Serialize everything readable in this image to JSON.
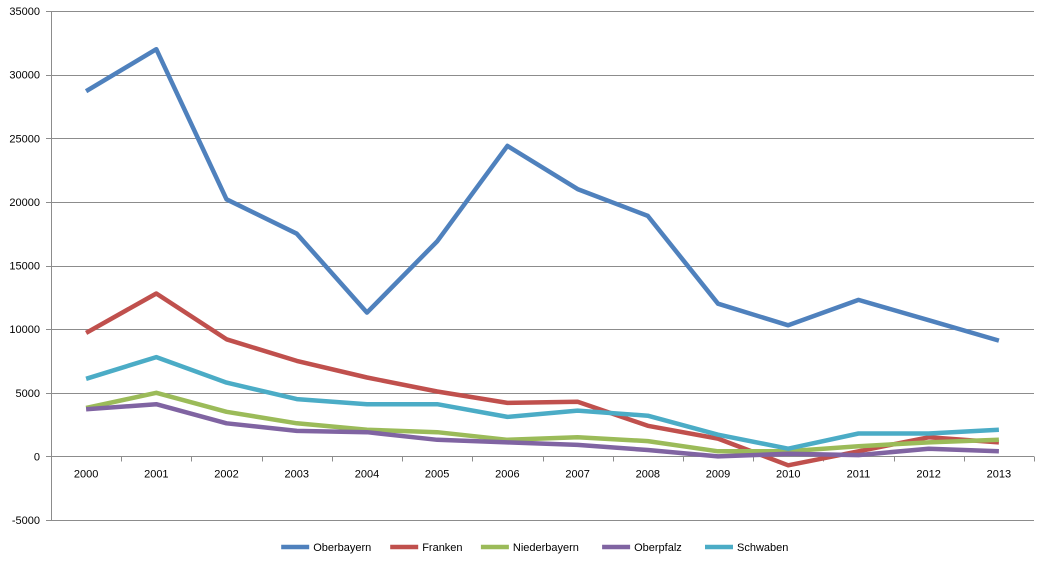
{
  "chart_data": {
    "type": "line",
    "title": "",
    "xlabel": "",
    "ylabel": "",
    "categories": [
      "2000",
      "2001",
      "2002",
      "2003",
      "2004",
      "2005",
      "2006",
      "2007",
      "2008",
      "2009",
      "2010",
      "2011",
      "2012",
      "2013"
    ],
    "ylim": [
      -5000,
      35000
    ],
    "yticks": [
      -5000,
      0,
      5000,
      10000,
      15000,
      20000,
      25000,
      30000,
      35000
    ],
    "grid": true,
    "legend_position": "bottom",
    "series": [
      {
        "name": "Oberbayern",
        "color": "#4f81bd",
        "values": [
          28700,
          32000,
          20200,
          17500,
          11300,
          16900,
          24400,
          21000,
          18900,
          12000,
          10300,
          12300,
          10700,
          9100
        ]
      },
      {
        "name": "Franken",
        "color": "#c0504d",
        "values": [
          9700,
          12800,
          9200,
          7500,
          6200,
          5100,
          4200,
          4300,
          2400,
          1400,
          -700,
          400,
          1500,
          1100
        ]
      },
      {
        "name": "Niederbayern",
        "color": "#9bbb59",
        "values": [
          3800,
          5000,
          3500,
          2600,
          2100,
          1900,
          1300,
          1500,
          1200,
          400,
          400,
          800,
          1100,
          1300
        ]
      },
      {
        "name": "Oberpfalz",
        "color": "#8064a2",
        "values": [
          3700,
          4100,
          2600,
          2000,
          1900,
          1300,
          1100,
          900,
          500,
          0,
          200,
          100,
          600,
          400
        ]
      },
      {
        "name": "Schwaben",
        "color": "#4bacc6",
        "values": [
          6100,
          7800,
          5800,
          4500,
          4100,
          4100,
          3100,
          3600,
          3200,
          1700,
          600,
          1800,
          1800,
          2100
        ]
      }
    ]
  }
}
